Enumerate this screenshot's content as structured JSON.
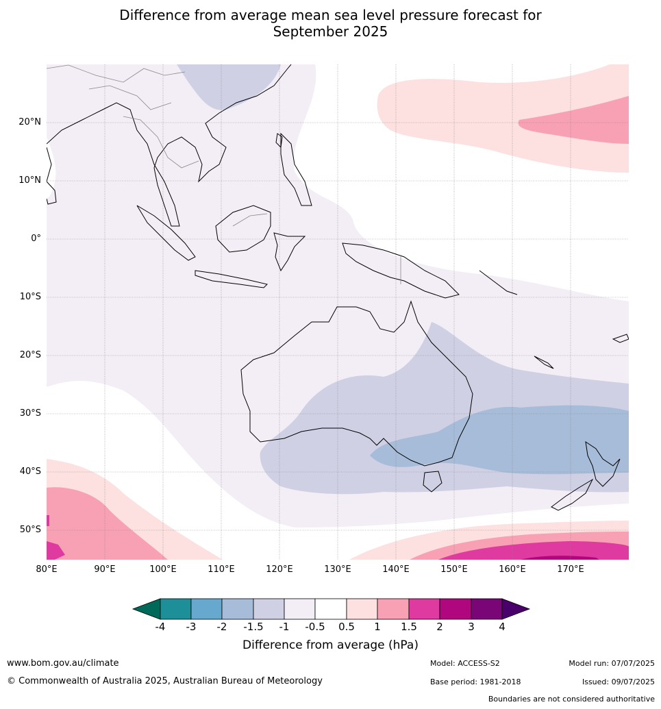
{
  "title_line1": "Difference from average mean sea level pressure forecast for",
  "title_line2": "September 2025",
  "map": {
    "lat_labels": [
      "20°N",
      "10°N",
      "0°",
      "10°S",
      "20°S",
      "30°S",
      "40°S",
      "50°S"
    ],
    "lon_labels": [
      "80°E",
      "90°E",
      "100°E",
      "110°E",
      "120°E",
      "130°E",
      "140°E",
      "150°E",
      "160°E",
      "170°E"
    ]
  },
  "colorbar": {
    "label": "Difference from average (hPa)",
    "ticks": [
      "-4",
      "-3",
      "-2",
      "-1.5",
      "-1",
      "-0.5",
      "0.5",
      "1",
      "1.5",
      "2",
      "3",
      "4"
    ],
    "colors": [
      "#006a5a",
      "#1c8f98",
      "#67a9ce",
      "#a6bcd8",
      "#cfd0e4",
      "#f3edf5",
      "#ffffff",
      "#fde0e0",
      "#f8a0b4",
      "#de3aa0",
      "#b0067e",
      "#790577",
      "#4a006a"
    ]
  },
  "footer": {
    "website": "www.bom.gov.au/climate",
    "copyright": "© Commonwealth of Australia 2025, Australian Bureau of Meteorology",
    "model": "Model: ACCESS-S2",
    "model_run": "Model run: 07/07/2025",
    "base_period": "Base period: 1981-2018",
    "issued": "Issued: 09/07/2025",
    "disclaimer": "Boundaries are not considered authoritative"
  }
}
